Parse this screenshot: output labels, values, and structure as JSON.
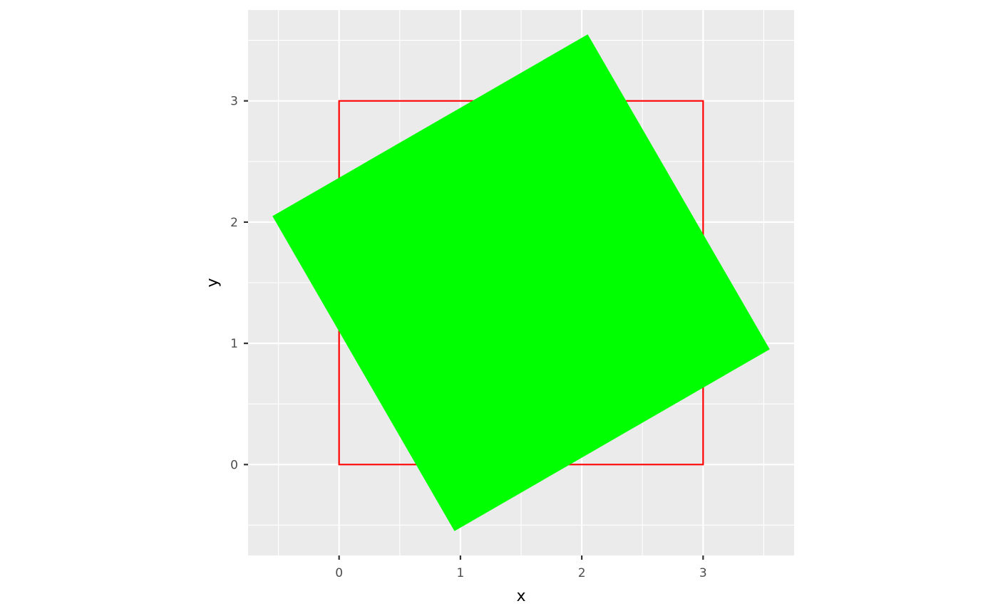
{
  "chart_data": {
    "type": "polygon",
    "xlabel": "x",
    "ylabel": "y",
    "xlim": [
      -0.75,
      3.75
    ],
    "ylim": [
      -0.75,
      3.75
    ],
    "x_ticks": [
      0,
      1,
      2,
      3
    ],
    "y_ticks": [
      0,
      1,
      2,
      3
    ],
    "x_minor": [
      -0.5,
      0.5,
      1.5,
      2.5,
      3.5
    ],
    "y_minor": [
      -0.5,
      0.5,
      1.5,
      2.5,
      3.5
    ],
    "grid": true,
    "panel_background": "#ebebeb",
    "grid_color": "#ffffff",
    "series": [
      {
        "role": "outline-square",
        "stroke": "#ff0000",
        "fill": "none",
        "points": [
          [
            0,
            0
          ],
          [
            3,
            0
          ],
          [
            3,
            3
          ],
          [
            0,
            3
          ]
        ]
      },
      {
        "role": "rotated-square",
        "stroke": "none",
        "fill": "#00ff00",
        "points": [
          [
            -0.549,
            2.049
          ],
          [
            2.049,
            3.549
          ],
          [
            3.549,
            0.951
          ],
          [
            0.951,
            -0.549
          ]
        ]
      }
    ]
  }
}
